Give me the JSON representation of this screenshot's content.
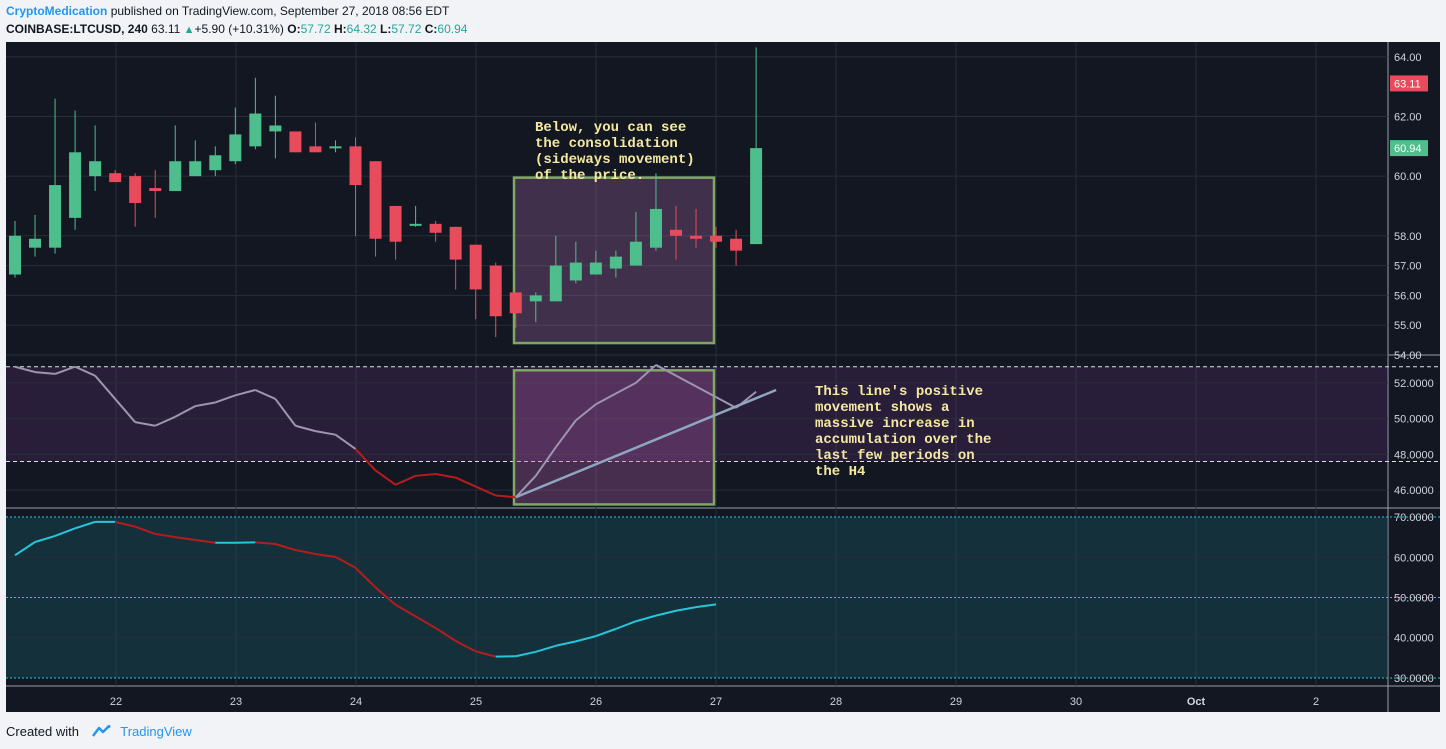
{
  "header": {
    "author": "CryptoMedication",
    "published": "published on TradingView.com, September 27, 2018 08:56 EDT",
    "symbol": "COINBASE:LTCUSD, 240",
    "last": "63.11",
    "change": "+5.90 (+10.31%)",
    "o_label": "O:",
    "o": "57.72",
    "h_label": "H:",
    "h": "64.32",
    "l_label": "L:",
    "l": "57.72",
    "c_label": "C:",
    "c": "60.94"
  },
  "footer": {
    "created_with": "Created with",
    "brand": "TradingView"
  },
  "colors": {
    "background": "#131722",
    "bull": "#4ebf8c",
    "bear": "#e84b5c",
    "box": "#7fa863",
    "annotation": "#f5e9a0",
    "last_price_tag": "#e84b5c",
    "close_tag": "#4ebf8c"
  },
  "chart_data": [
    {
      "type": "candlestick",
      "ylim": [
        54,
        64.5
      ],
      "y_ticks": [
        "64.00",
        "62.00",
        "60.00",
        "58.00",
        "57.00",
        "56.00",
        "55.00",
        "54.00"
      ],
      "y_tick_values": [
        64,
        62,
        60,
        58,
        57,
        56,
        55,
        54
      ],
      "x_ticks": [
        "22",
        "23",
        "24",
        "25",
        "26",
        "27",
        "28",
        "29",
        "30",
        "Oct",
        "2"
      ],
      "candles": [
        {
          "o": 56.7,
          "h": 58.5,
          "l": 56.6,
          "c": 58.0
        },
        {
          "o": 57.6,
          "h": 58.7,
          "l": 57.3,
          "c": 57.9
        },
        {
          "o": 57.6,
          "h": 62.6,
          "l": 57.4,
          "c": 59.7
        },
        {
          "o": 58.6,
          "h": 62.2,
          "l": 58.2,
          "c": 60.8
        },
        {
          "o": 60.0,
          "h": 61.7,
          "l": 59.5,
          "c": 60.5
        },
        {
          "o": 60.1,
          "h": 60.2,
          "l": 59.8,
          "c": 59.8
        },
        {
          "o": 60.0,
          "h": 60.1,
          "l": 58.3,
          "c": 59.1
        },
        {
          "o": 59.6,
          "h": 60.2,
          "l": 58.6,
          "c": 59.5
        },
        {
          "o": 59.5,
          "h": 61.7,
          "l": 59.5,
          "c": 60.5
        },
        {
          "o": 60.0,
          "h": 61.2,
          "l": 60.0,
          "c": 60.5
        },
        {
          "o": 60.2,
          "h": 61.0,
          "l": 60.0,
          "c": 60.7
        },
        {
          "o": 60.5,
          "h": 62.3,
          "l": 60.4,
          "c": 61.4
        },
        {
          "o": 61.0,
          "h": 63.3,
          "l": 60.9,
          "c": 62.1
        },
        {
          "o": 61.5,
          "h": 62.7,
          "l": 60.6,
          "c": 61.7
        },
        {
          "o": 61.5,
          "h": 61.5,
          "l": 60.8,
          "c": 60.8
        },
        {
          "o": 61.0,
          "h": 61.8,
          "l": 60.8,
          "c": 60.8
        },
        {
          "o": 61.0,
          "h": 61.2,
          "l": 60.8,
          "c": 61.0
        },
        {
          "o": 61.0,
          "h": 61.3,
          "l": 58.0,
          "c": 59.7
        },
        {
          "o": 60.5,
          "h": 60.5,
          "l": 57.3,
          "c": 57.9
        },
        {
          "o": 59.0,
          "h": 59.0,
          "l": 57.2,
          "c": 57.8
        },
        {
          "o": 58.4,
          "h": 59.0,
          "l": 58.3,
          "c": 58.4
        },
        {
          "o": 58.4,
          "h": 58.5,
          "l": 57.8,
          "c": 58.1
        },
        {
          "o": 58.3,
          "h": 58.3,
          "l": 56.2,
          "c": 57.2
        },
        {
          "o": 57.7,
          "h": 57.7,
          "l": 55.2,
          "c": 56.2
        },
        {
          "o": 57.0,
          "h": 57.1,
          "l": 54.6,
          "c": 55.3
        },
        {
          "o": 56.1,
          "h": 56.1,
          "l": 54.9,
          "c": 55.4
        },
        {
          "o": 55.8,
          "h": 56.1,
          "l": 55.1,
          "c": 56.0
        },
        {
          "o": 55.8,
          "h": 58.0,
          "l": 55.8,
          "c": 57.0
        },
        {
          "o": 56.5,
          "h": 57.8,
          "l": 56.4,
          "c": 57.1
        },
        {
          "o": 56.7,
          "h": 57.5,
          "l": 56.7,
          "c": 57.1
        },
        {
          "o": 56.9,
          "h": 57.5,
          "l": 56.6,
          "c": 57.3
        },
        {
          "o": 57.0,
          "h": 58.8,
          "l": 57.0,
          "c": 57.8
        },
        {
          "o": 57.6,
          "h": 60.1,
          "l": 57.5,
          "c": 58.9
        },
        {
          "o": 58.2,
          "h": 59.0,
          "l": 57.2,
          "c": 58.0
        },
        {
          "o": 58.0,
          "h": 58.9,
          "l": 57.6,
          "c": 57.9
        },
        {
          "o": 58.0,
          "h": 58.3,
          "l": 57.6,
          "c": 57.8
        },
        {
          "o": 57.9,
          "h": 58.2,
          "l": 57.0,
          "c": 57.5
        },
        {
          "o": 57.72,
          "h": 64.32,
          "l": 57.72,
          "c": 60.94
        }
      ],
      "price_tags": {
        "last": "63.11",
        "close": "60.94"
      },
      "annotation": "Below, you can see\nthe consolidation\n(sideways movement)\nof the price."
    },
    {
      "type": "line",
      "ylim": [
        45,
        53.5
      ],
      "y_ticks": [
        "52.0000",
        "50.0000",
        "48.0000",
        "46.0000"
      ],
      "y_tick_values": [
        52,
        50,
        48,
        46
      ],
      "band": [
        47.6,
        52.9
      ],
      "series": [
        {
          "values": [
            52.9,
            52.6,
            52.5,
            52.9,
            52.4,
            51.1,
            49.8,
            49.6,
            50.1,
            50.7,
            50.9,
            51.3,
            51.6,
            51.1,
            49.6,
            49.3,
            49.1,
            48.3,
            47.1,
            46.3,
            46.8,
            46.9,
            46.7,
            46.2,
            45.7,
            45.6,
            46.8,
            48.4,
            49.9,
            50.8,
            51.4,
            52.0,
            53.0,
            52.4,
            51.8,
            51.2,
            50.6,
            51.5
          ]
        },
        {
          "values": [
            45.6,
            51.6
          ],
          "x_index": [
            25,
            38
          ]
        }
      ],
      "annotation": "This line's positive\nmovement shows a\nmassive increase in\naccumulation over the\nlast few periods on\nthe H4"
    },
    {
      "type": "line",
      "ylim": [
        28,
        72
      ],
      "y_ticks": [
        "70.0000",
        "60.0000",
        "50.0000",
        "40.0000",
        "30.0000"
      ],
      "y_tick_values": [
        70,
        60,
        50,
        40,
        30
      ],
      "band": [
        30,
        70
      ],
      "series": [
        {
          "values": [
            60.5,
            63.8,
            65.3,
            67.2,
            68.8,
            68.8,
            67.6,
            65.8,
            65.0,
            64.3,
            63.6,
            63.6,
            63.7,
            63.3,
            61.8,
            60.8,
            60.1,
            57.4,
            52.5,
            48.2,
            45.3,
            42.4,
            39.2,
            36.6,
            35.3,
            35.4,
            36.5,
            38.0,
            39.1,
            40.4,
            42.2,
            44.1,
            45.5,
            46.7,
            47.6,
            48.3
          ]
        }
      ]
    }
  ]
}
